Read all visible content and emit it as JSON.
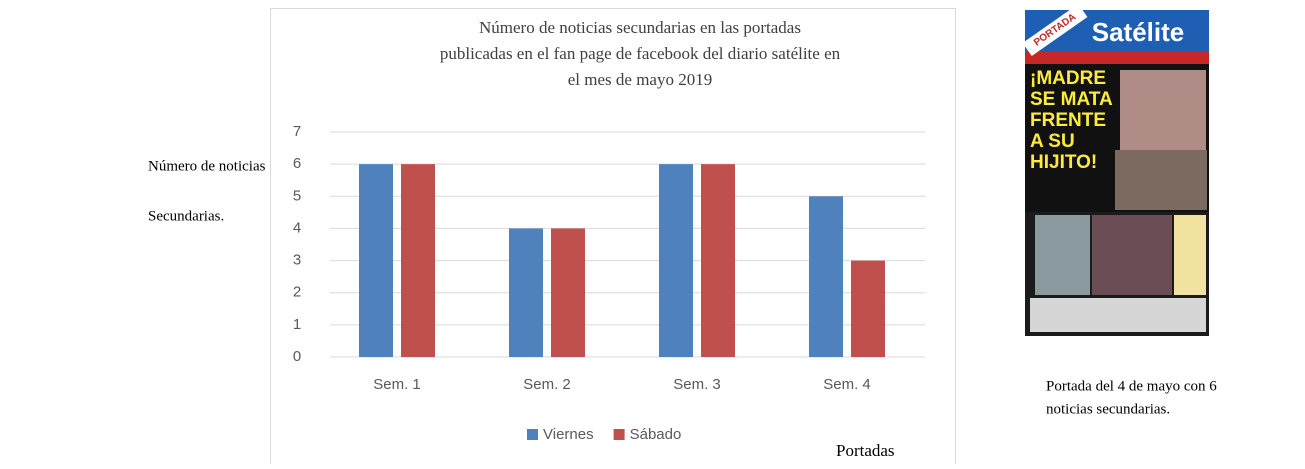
{
  "side_label": {
    "lines": [
      "Número de noticias",
      "Secundarias."
    ]
  },
  "chart_data": {
    "type": "bar",
    "title": [
      "Número de noticias secundarias en las portadas",
      "publicadas en el fan page de facebook del diario satélite en",
      "el mes de mayo 2019"
    ],
    "categories": [
      "Sem. 1",
      "Sem. 2",
      "Sem. 3",
      "Sem. 4"
    ],
    "series": [
      {
        "name": "Viernes",
        "color": "#4f81bd",
        "values": [
          6,
          4,
          6,
          5
        ]
      },
      {
        "name": "Sábado",
        "color": "#c0504d",
        "values": [
          6,
          4,
          6,
          3
        ]
      }
    ],
    "ylim": [
      0,
      7
    ],
    "yticks": [
      0,
      1,
      2,
      3,
      4,
      5,
      6,
      7
    ],
    "grid": true,
    "legend": "bottom",
    "x_label": "Portadas"
  },
  "cover": {
    "badge": "PORTADA",
    "masthead": "Satélite",
    "headline": "¡MADRE SE MATA FRENTE A SU HIJITO!"
  },
  "caption": {
    "lines": [
      "Portada del 4 de mayo con 6",
      "noticias secundarias."
    ]
  }
}
